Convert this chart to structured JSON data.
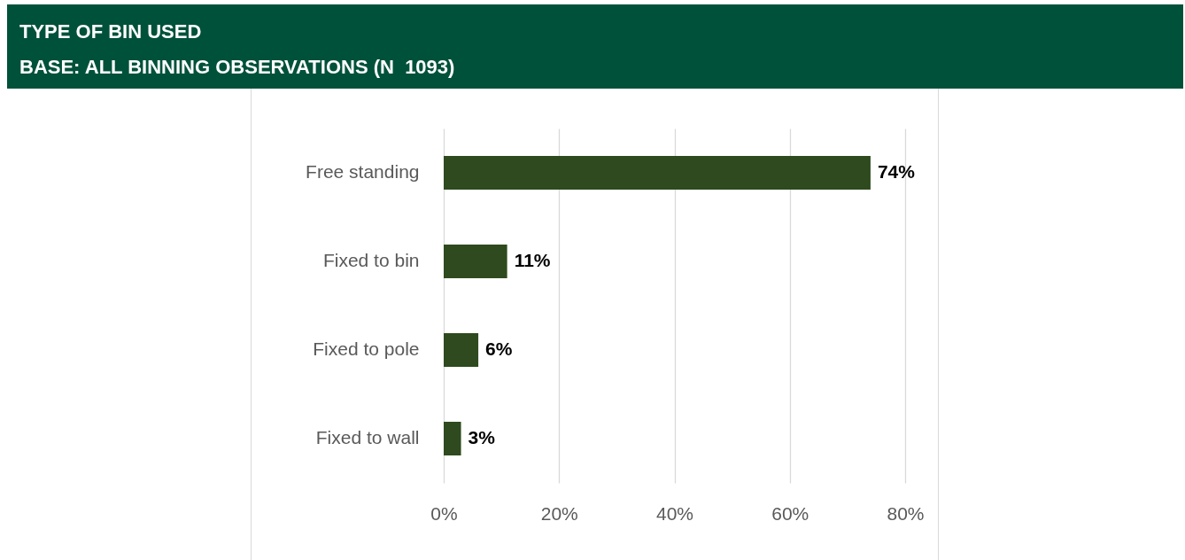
{
  "chart_data": {
    "type": "bar",
    "title": "TYPE OF BIN USED",
    "subtitle": "BASE: ALL BINNING OBSERVATIONS (N  1093)",
    "orientation": "horizontal",
    "categories": [
      "Free standing",
      "Fixed to bin",
      "Fixed to pole",
      "Fixed to wall"
    ],
    "values": [
      74,
      11,
      6,
      3
    ],
    "value_labels": [
      "74%",
      "11%",
      "6%",
      "3%"
    ],
    "color": "#2e4a1e",
    "xlim": [
      0,
      80
    ],
    "xticks": [
      {
        "value": 0,
        "label": "0%"
      },
      {
        "value": 20,
        "label": "20%"
      },
      {
        "value": 40,
        "label": "40%"
      },
      {
        "value": 60,
        "label": "60%"
      },
      {
        "value": 80,
        "label": "80%"
      }
    ],
    "grid": "x"
  }
}
